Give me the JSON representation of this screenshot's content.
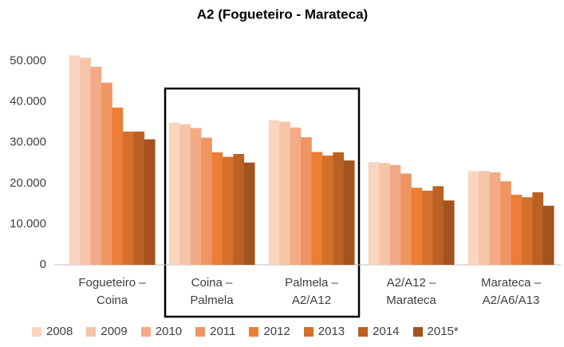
{
  "chart_data": {
    "type": "bar",
    "title": "A2 (Fogueteiro - Marateca)",
    "categories": [
      "Fogueteiro –\nCoina",
      "Coina –\nPalmela",
      "Palmela –\nA2/A12",
      "A2/A12 –\nMarateca",
      "Marateca –\nA2/A6/A13"
    ],
    "series": [
      {
        "name": "2008",
        "color": "#f9d5c0",
        "values": [
          51400,
          34900,
          35500,
          25200,
          23000
        ]
      },
      {
        "name": "2009",
        "color": "#f6c4a7",
        "values": [
          50800,
          34500,
          35100,
          25000,
          23000
        ]
      },
      {
        "name": "2010",
        "color": "#f2ab86",
        "values": [
          48600,
          33600,
          33700,
          24500,
          22700
        ]
      },
      {
        "name": "2011",
        "color": "#ef9563",
        "values": [
          44700,
          31200,
          31300,
          22400,
          20500
        ]
      },
      {
        "name": "2012",
        "color": "#ec7e35",
        "values": [
          38600,
          27600,
          27700,
          18900,
          17200
        ]
      },
      {
        "name": "2013",
        "color": "#d5702b",
        "values": [
          32700,
          26500,
          26800,
          18200,
          16600
        ]
      },
      {
        "name": "2014",
        "color": "#bb6124",
        "values": [
          32700,
          27200,
          27600,
          19300,
          17800
        ]
      },
      {
        "name": "2015*",
        "color": "#a2531e",
        "values": [
          30800,
          25100,
          25600,
          15800,
          14500
        ]
      }
    ],
    "ylim": [
      0,
      55000
    ],
    "yticks": [
      0,
      {
        "value": 10000,
        "label": "10.000"
      },
      {
        "value": 20000,
        "label": "20.000"
      },
      {
        "value": 30000,
        "label": "30.000"
      },
      {
        "value": 40000,
        "label": "40.000"
      },
      {
        "value": 50000,
        "label": "50.000"
      }
    ],
    "grid": false
  }
}
